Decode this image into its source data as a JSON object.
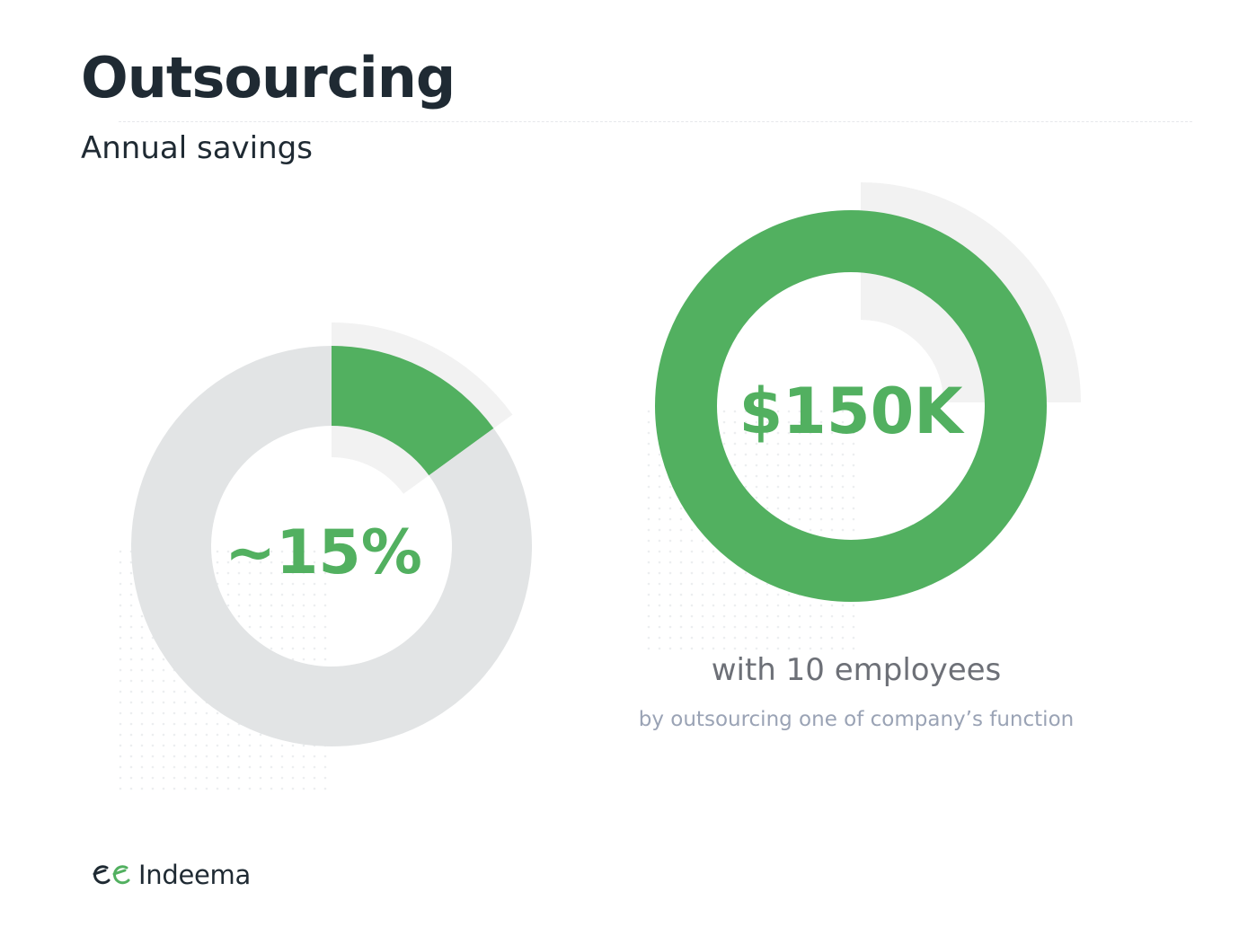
{
  "title": "Outsourcing",
  "subtitle": "Annual savings",
  "chart_data": [
    {
      "type": "pie",
      "style": "donut",
      "values": [
        15,
        85
      ],
      "labels": [
        "",
        ""
      ],
      "center_label": "~15%",
      "colors": [
        "#52b060",
        "#e2e4e5"
      ]
    },
    {
      "type": "pie",
      "style": "donut",
      "values": [
        100
      ],
      "labels": [
        ""
      ],
      "center_label": "$150K",
      "colors": [
        "#52b060"
      ]
    }
  ],
  "caption": {
    "main": "with 10 employees",
    "sub": "by outsourcing one of company’s function"
  },
  "brand": {
    "name": "Indeema",
    "accent": "#52b060",
    "text_color": "#1f2a33"
  }
}
